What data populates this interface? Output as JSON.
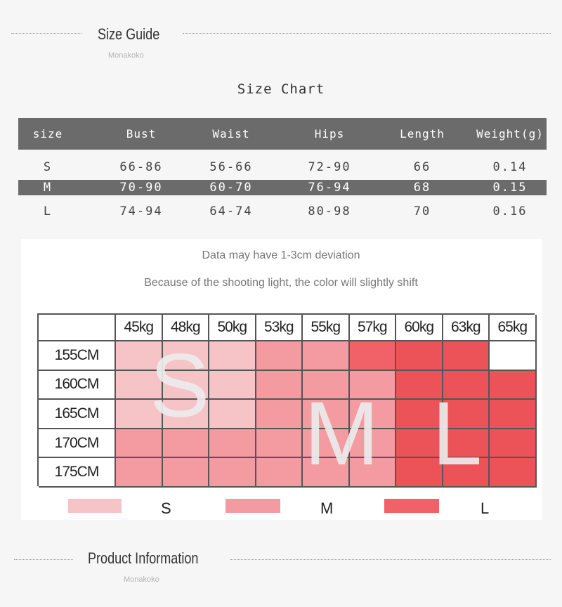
{
  "size_guide": {
    "title": "Size Guide",
    "subtitle": "Monakoko"
  },
  "chart_title": "Size Chart",
  "size_table": {
    "headers": [
      "size",
      "Bust",
      "Waist",
      "Hips",
      "Length",
      "Weight(g)"
    ],
    "rows": [
      [
        "S",
        "66-86",
        "56-66",
        "72-90",
        "66",
        "0.14"
      ],
      [
        "M",
        "70-90",
        "60-70",
        "76-94",
        "68",
        "0.15"
      ],
      [
        "L",
        "74-94",
        "64-74",
        "80-98",
        "70",
        "0.16"
      ]
    ],
    "highlighted_row": 1
  },
  "notes": [
    "Data may have 1-3cm deviation",
    "Because of the shooting light, the color will slightly shift"
  ],
  "fit_grid": {
    "weights": [
      "45kg",
      "48kg",
      "50kg",
      "53kg",
      "55kg",
      "57kg",
      "60kg",
      "63kg",
      "65kg"
    ],
    "heights": [
      "155CM",
      "160CM",
      "165CM",
      "170CM",
      "175CM"
    ],
    "cells": [
      [
        "S",
        "S",
        "S",
        "M",
        "M",
        "L",
        "L",
        "L",
        ""
      ],
      [
        "S",
        "S",
        "S",
        "M",
        "M",
        "M",
        "L",
        "L",
        "L"
      ],
      [
        "S",
        "S",
        "S",
        "M",
        "M",
        "M",
        "L",
        "L",
        "L"
      ],
      [
        "M",
        "M",
        "M",
        "M",
        "M",
        "M",
        "L",
        "L",
        "L"
      ],
      [
        "M",
        "M",
        "M",
        "M",
        "M",
        "M",
        "L",
        "L",
        "L"
      ]
    ],
    "overlay_letters": [
      "S",
      "M",
      "L"
    ],
    "colors": {
      "S": "#f6c3c6",
      "M": "#f39ba0",
      "L": "#f06168",
      "L_dark": "#ec5359",
      "empty": "#ffffff"
    }
  },
  "legend": [
    {
      "label": "S",
      "color": "#f6c3c6"
    },
    {
      "label": "M",
      "color": "#f39ba0"
    },
    {
      "label": "L",
      "color": "#f06168"
    }
  ],
  "product_info": {
    "title": "Product Information",
    "subtitle": "Monakoko"
  }
}
